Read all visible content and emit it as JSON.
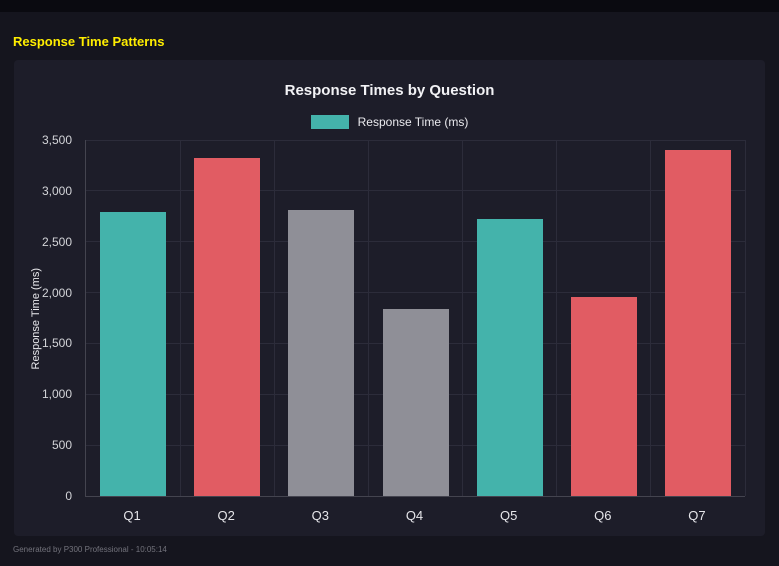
{
  "header": {
    "title": "Response Time Patterns",
    "color": "#ffee00"
  },
  "footer": {
    "text": "Generated by P300 Professional - 10:05:14"
  },
  "chart_data": {
    "type": "bar",
    "title": "Response Times by Question",
    "legend": [
      {
        "label": "Response Time (ms)",
        "color": "#44b3ab"
      }
    ],
    "legend_position": "top",
    "categories": [
      "Q1",
      "Q2",
      "Q3",
      "Q4",
      "Q5",
      "Q6",
      "Q7"
    ],
    "values": [
      2790,
      3320,
      2810,
      1840,
      2720,
      1960,
      3400
    ],
    "bar_colors": [
      "#44b3ab",
      "#e15c63",
      "#8f8f97",
      "#8f8f97",
      "#44b3ab",
      "#e15c63",
      "#e15c63"
    ],
    "xlabel": "",
    "ylabel": "Response Time (ms)",
    "ylim": [
      0,
      3500
    ],
    "yticks": [
      0,
      500,
      1000,
      1500,
      2000,
      2500,
      3000,
      3500
    ],
    "grid": true,
    "colors": {
      "page_background": "#15151e",
      "panel_background": "#1d1d29",
      "gridline": "#2c2c3a",
      "teal": "#44b3ab",
      "red": "#e15c63",
      "gray": "#8f8f97"
    }
  }
}
